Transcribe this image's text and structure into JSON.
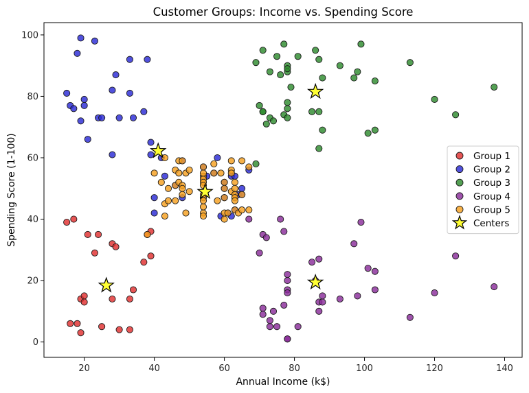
{
  "chart_data": {
    "type": "scatter",
    "title": "Customer Groups: Income vs. Spending Score",
    "xlabel": "Annual Income (k$)",
    "ylabel": "Spending Score (1-100)",
    "xlim": [
      8.5,
      145
    ],
    "ylim": [
      -5,
      104
    ],
    "xticks": [
      20,
      40,
      60,
      80,
      100,
      120,
      140
    ],
    "yticks": [
      0,
      20,
      40,
      60,
      80,
      100
    ],
    "grid": false,
    "legend_position": "center-right",
    "colors": {
      "Group 1": "#e03030",
      "Group 2": "#2b2bd6",
      "Group 3": "#2e8b2e",
      "Group 4": "#8a2d9a",
      "Group 5": "#f5a020",
      "Centers": "#ffff33"
    },
    "series": [
      {
        "name": "Group 1",
        "points": [
          [
            15,
            39
          ],
          [
            16,
            6
          ],
          [
            17,
            40
          ],
          [
            18,
            6
          ],
          [
            19,
            3
          ],
          [
            19,
            14
          ],
          [
            20,
            15
          ],
          [
            20,
            13
          ],
          [
            21,
            35
          ],
          [
            23,
            29
          ],
          [
            24,
            35
          ],
          [
            25,
            5
          ],
          [
            28,
            14
          ],
          [
            28,
            32
          ],
          [
            29,
            31
          ],
          [
            30,
            4
          ],
          [
            33,
            4
          ],
          [
            33,
            14
          ],
          [
            34,
            17
          ],
          [
            37,
            26
          ],
          [
            38,
            35
          ],
          [
            39,
            36
          ],
          [
            39,
            28
          ]
        ]
      },
      {
        "name": "Group 2",
        "points": [
          [
            15,
            81
          ],
          [
            16,
            77
          ],
          [
            17,
            76
          ],
          [
            18,
            94
          ],
          [
            19,
            72
          ],
          [
            19,
            99
          ],
          [
            20,
            77
          ],
          [
            20,
            79
          ],
          [
            21,
            66
          ],
          [
            23,
            98
          ],
          [
            24,
            73
          ],
          [
            25,
            73
          ],
          [
            28,
            82
          ],
          [
            28,
            61
          ],
          [
            29,
            87
          ],
          [
            30,
            73
          ],
          [
            33,
            92
          ],
          [
            33,
            81
          ],
          [
            34,
            73
          ],
          [
            37,
            75
          ],
          [
            38,
            92
          ],
          [
            39,
            65
          ],
          [
            39,
            61
          ],
          [
            40,
            47
          ],
          [
            40,
            42
          ],
          [
            42,
            60
          ],
          [
            43,
            54
          ],
          [
            46,
            51
          ],
          [
            48,
            47
          ],
          [
            48,
            59
          ],
          [
            54,
            57
          ],
          [
            55,
            54
          ],
          [
            57,
            55
          ],
          [
            58,
            60
          ],
          [
            59,
            41
          ],
          [
            60,
            52
          ],
          [
            60,
            50
          ],
          [
            60,
            47
          ],
          [
            61,
            42
          ],
          [
            62,
            54
          ],
          [
            62,
            41
          ],
          [
            63,
            54
          ],
          [
            63,
            43
          ],
          [
            64,
            48
          ],
          [
            65,
            50
          ],
          [
            65,
            48
          ],
          [
            67,
            56
          ]
        ]
      },
      {
        "name": "Group 3",
        "points": [
          [
            69,
            91
          ],
          [
            69,
            58
          ],
          [
            70,
            77
          ],
          [
            71,
            95
          ],
          [
            71,
            75
          ],
          [
            71,
            75
          ],
          [
            72,
            71
          ],
          [
            73,
            88
          ],
          [
            73,
            73
          ],
          [
            74,
            72
          ],
          [
            75,
            93
          ],
          [
            76,
            87
          ],
          [
            77,
            97
          ],
          [
            77,
            74
          ],
          [
            78,
            90
          ],
          [
            78,
            88
          ],
          [
            78,
            89
          ],
          [
            78,
            78
          ],
          [
            78,
            76
          ],
          [
            78,
            73
          ],
          [
            79,
            83
          ],
          [
            81,
            93
          ],
          [
            85,
            75
          ],
          [
            86,
            95
          ],
          [
            87,
            63
          ],
          [
            87,
            75
          ],
          [
            87,
            92
          ],
          [
            88,
            86
          ],
          [
            88,
            69
          ],
          [
            93,
            90
          ],
          [
            97,
            86
          ],
          [
            98,
            88
          ],
          [
            99,
            97
          ],
          [
            101,
            68
          ],
          [
            103,
            85
          ],
          [
            103,
            69
          ],
          [
            113,
            91
          ],
          [
            120,
            79
          ],
          [
            126,
            74
          ],
          [
            137,
            83
          ]
        ]
      },
      {
        "name": "Group 4",
        "points": [
          [
            67,
            40
          ],
          [
            70,
            29
          ],
          [
            71,
            35
          ],
          [
            71,
            11
          ],
          [
            71,
            9
          ],
          [
            72,
            34
          ],
          [
            73,
            5
          ],
          [
            73,
            7
          ],
          [
            74,
            10
          ],
          [
            75,
            5
          ],
          [
            76,
            40
          ],
          [
            77,
            36
          ],
          [
            77,
            12
          ],
          [
            78,
            22
          ],
          [
            78,
            17
          ],
          [
            78,
            20
          ],
          [
            78,
            16
          ],
          [
            78,
            1
          ],
          [
            78,
            1
          ],
          [
            81,
            5
          ],
          [
            85,
            26
          ],
          [
            86,
            20
          ],
          [
            87,
            27
          ],
          [
            87,
            13
          ],
          [
            87,
            10
          ],
          [
            88,
            13
          ],
          [
            88,
            15
          ],
          [
            93,
            14
          ],
          [
            97,
            32
          ],
          [
            98,
            15
          ],
          [
            99,
            39
          ],
          [
            101,
            24
          ],
          [
            103,
            17
          ],
          [
            103,
            23
          ],
          [
            113,
            8
          ],
          [
            120,
            16
          ],
          [
            126,
            28
          ],
          [
            137,
            18
          ]
        ]
      },
      {
        "name": "Group 5",
        "points": [
          [
            38,
            35
          ],
          [
            40,
            55
          ],
          [
            42,
            52
          ],
          [
            43,
            60
          ],
          [
            43,
            45
          ],
          [
            43,
            41
          ],
          [
            44,
            50
          ],
          [
            44,
            46
          ],
          [
            46,
            51
          ],
          [
            46,
            46
          ],
          [
            46,
            56
          ],
          [
            47,
            55
          ],
          [
            47,
            52
          ],
          [
            47,
            59
          ],
          [
            48,
            51
          ],
          [
            48,
            59
          ],
          [
            48,
            50
          ],
          [
            48,
            48
          ],
          [
            49,
            55
          ],
          [
            49,
            42
          ],
          [
            50,
            49
          ],
          [
            50,
            56
          ],
          [
            54,
            47
          ],
          [
            54,
            54
          ],
          [
            54,
            53
          ],
          [
            54,
            48
          ],
          [
            54,
            52
          ],
          [
            54,
            42
          ],
          [
            54,
            51
          ],
          [
            54,
            55
          ],
          [
            54,
            41
          ],
          [
            54,
            44
          ],
          [
            54,
            57
          ],
          [
            54,
            46
          ],
          [
            57,
            58
          ],
          [
            57,
            55
          ],
          [
            58,
            46
          ],
          [
            59,
            55
          ],
          [
            60,
            40
          ],
          [
            60,
            42
          ],
          [
            60,
            52
          ],
          [
            60,
            47
          ],
          [
            60,
            50
          ],
          [
            61,
            42
          ],
          [
            62,
            56
          ],
          [
            62,
            59
          ],
          [
            62,
            55
          ],
          [
            62,
            49
          ],
          [
            63,
            48
          ],
          [
            63,
            52
          ],
          [
            63,
            47
          ],
          [
            63,
            43
          ],
          [
            63,
            46
          ],
          [
            63,
            50
          ],
          [
            64,
            42
          ],
          [
            65,
            43
          ],
          [
            65,
            59
          ],
          [
            65,
            48
          ],
          [
            67,
            43
          ],
          [
            67,
            57
          ]
        ]
      },
      {
        "name": "Centers",
        "marker": "star",
        "points": [
          [
            26.3,
            18.4
          ],
          [
            41.1,
            62.2
          ],
          [
            86.0,
            81.5
          ],
          [
            86.0,
            19.4
          ],
          [
            54.5,
            48.9
          ]
        ]
      }
    ]
  }
}
